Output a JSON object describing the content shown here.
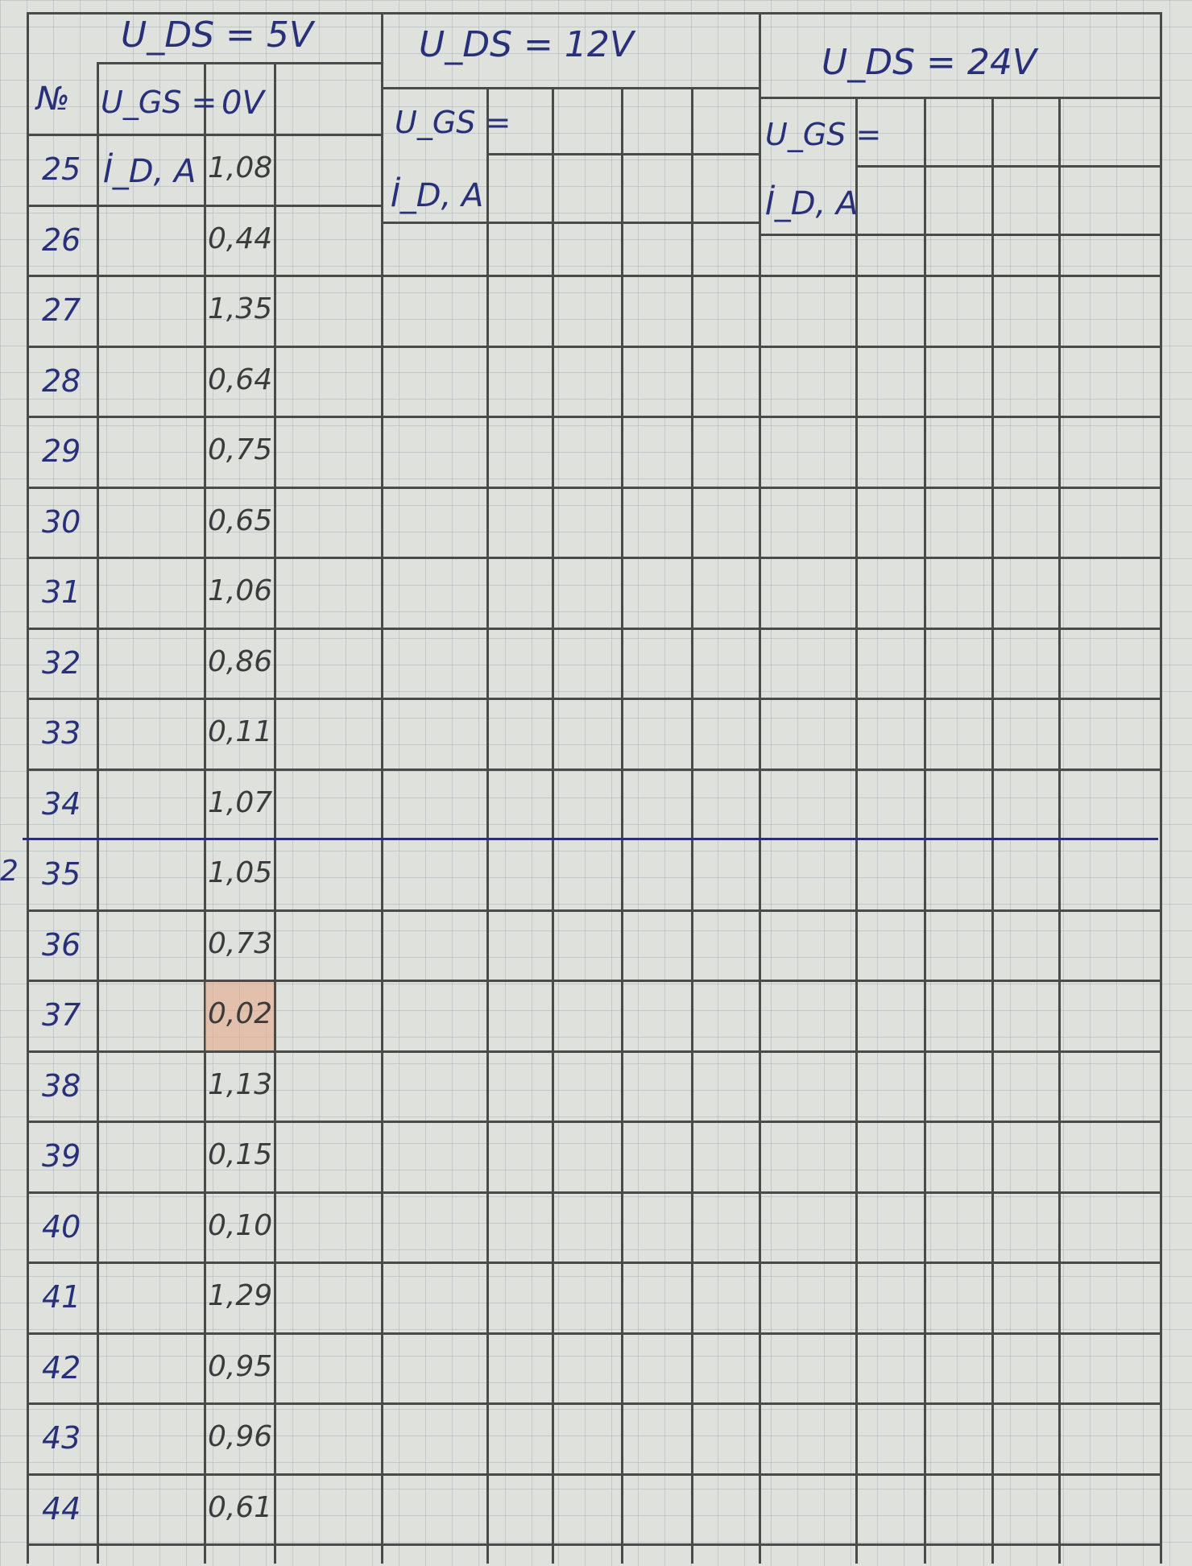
{
  "table": {
    "margin_mark": "2",
    "number_header": "№",
    "blocks": [
      {
        "title": "U_DS = 5V",
        "ugs_label": "U_GS =",
        "ugs_value": "0V",
        "id_label": "İ_D, A"
      },
      {
        "title": "U_DS = 12V",
        "ugs_label": "U_GS =",
        "id_label": "İ_D, A"
      },
      {
        "title": "U_DS = 24V",
        "ugs_label": "U_GS =",
        "id_label": "İ_D, A"
      }
    ],
    "rows": [
      {
        "n": "25",
        "id": "1,08"
      },
      {
        "n": "26",
        "id": "0,44"
      },
      {
        "n": "27",
        "id": "1,35"
      },
      {
        "n": "28",
        "id": "0,64"
      },
      {
        "n": "29",
        "id": "0,75"
      },
      {
        "n": "30",
        "id": "0,65"
      },
      {
        "n": "31",
        "id": "1,06"
      },
      {
        "n": "32",
        "id": "0,86"
      },
      {
        "n": "33",
        "id": "0,11"
      },
      {
        "n": "34",
        "id": "1,07"
      },
      {
        "n": "35",
        "id": "1,05"
      },
      {
        "n": "36",
        "id": "0,73"
      },
      {
        "n": "37",
        "id": "0,02",
        "highlight": true
      },
      {
        "n": "38",
        "id": "1,13"
      },
      {
        "n": "39",
        "id": "0,15"
      },
      {
        "n": "40",
        "id": "0,10"
      },
      {
        "n": "41",
        "id": "1,29"
      },
      {
        "n": "42",
        "id": "0,95"
      },
      {
        "n": "43",
        "id": "0,96"
      },
      {
        "n": "44",
        "id": "0,61"
      }
    ],
    "colors": {
      "ink": "#28307a",
      "pencil": "#3b3b3b",
      "highlight": "#e6aa8c",
      "separator": "#2b2f6e"
    }
  }
}
